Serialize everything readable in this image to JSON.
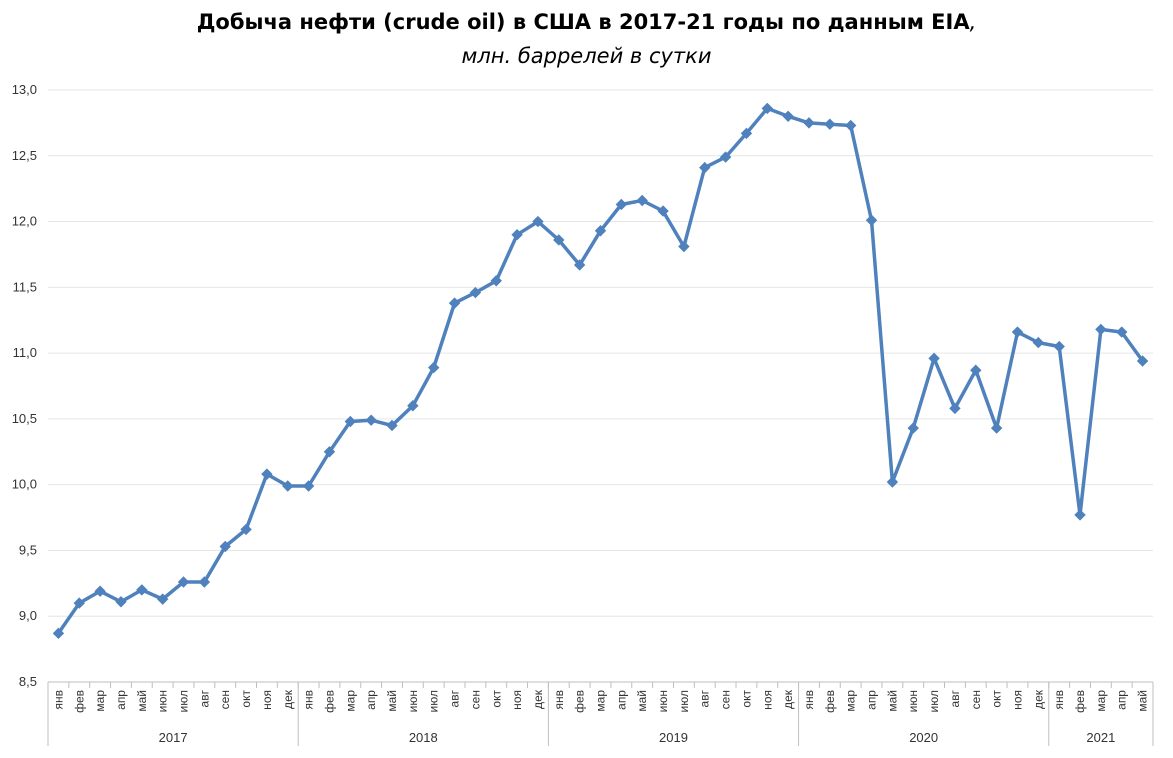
{
  "chart_data": {
    "type": "line",
    "title": "Добыча нефти (crude oil) в США в 2017-21 годы по данным EIA",
    "title_suffix": ",",
    "subtitle": "млн. баррелей в сутки",
    "ylim": [
      8.5,
      13.0
    ],
    "y_ticks": [
      "8,5",
      "9,0",
      "9,5",
      "10,0",
      "10,5",
      "11,0",
      "11,5",
      "12,0",
      "12,5",
      "13,0"
    ],
    "grid": "horizontal",
    "color": "#4f81bd",
    "years": [
      {
        "label": "2017",
        "months": [
          "янв",
          "фев",
          "мар",
          "апр",
          "май",
          "июн",
          "июл",
          "авг",
          "сен",
          "окт",
          "ноя",
          "дек"
        ]
      },
      {
        "label": "2018",
        "months": [
          "янв",
          "фев",
          "мар",
          "апр",
          "май",
          "июн",
          "июл",
          "авг",
          "сен",
          "окт",
          "ноя",
          "дек"
        ]
      },
      {
        "label": "2019",
        "months": [
          "янв",
          "фев",
          "мар",
          "апр",
          "май",
          "июн",
          "июл",
          "авг",
          "сен",
          "окт",
          "ноя",
          "дек"
        ]
      },
      {
        "label": "2020",
        "months": [
          "янв",
          "фев",
          "мар",
          "апр",
          "май",
          "июн",
          "июл",
          "авг",
          "сен",
          "окт",
          "ноя",
          "дек"
        ]
      },
      {
        "label": "2021",
        "months": [
          "янв",
          "фев",
          "мар",
          "апр",
          "май"
        ]
      }
    ],
    "values": [
      8.87,
      9.1,
      9.19,
      9.11,
      9.2,
      9.13,
      9.26,
      9.26,
      9.53,
      9.66,
      10.08,
      9.99,
      9.99,
      10.25,
      10.48,
      10.49,
      10.45,
      10.6,
      10.89,
      11.38,
      11.46,
      11.55,
      11.9,
      12.0,
      11.86,
      11.67,
      11.93,
      12.13,
      12.16,
      12.08,
      11.81,
      12.41,
      12.49,
      12.67,
      12.86,
      12.8,
      12.75,
      12.74,
      12.73,
      12.01,
      10.02,
      10.43,
      10.96,
      10.58,
      10.87,
      10.43,
      11.16,
      11.08,
      11.05,
      9.77,
      11.18,
      11.16,
      10.94
    ]
  }
}
